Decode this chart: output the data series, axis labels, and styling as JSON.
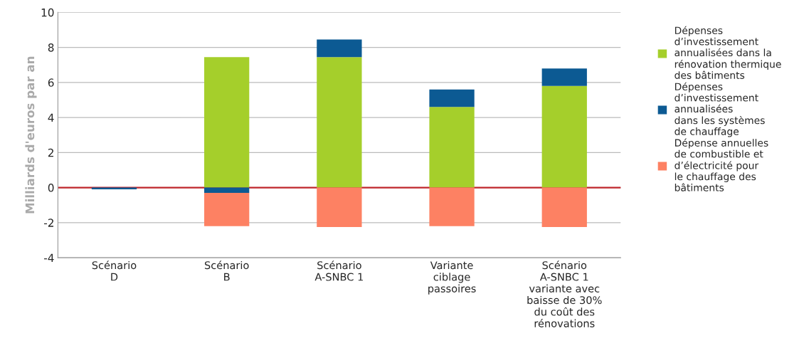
{
  "chart_data": {
    "type": "bar",
    "stacked": true,
    "ylabel": "Milliards d'euros par an",
    "categories": [
      "Scénario\nD",
      "Scénario\nB",
      "Scénario\nA-SNBC 1",
      "Variante\nciblage\npassoires",
      "Scénario\nA-SNBC 1\nvariante avec\nbaisse de 30%\ndu coût des\nrénovations"
    ],
    "series": [
      {
        "name": "Dépenses\nd’investissement\nannualisées dans la\nrénovation thermique\ndes bâtiments",
        "color": "#a5cf2b",
        "values": [
          null,
          7.45,
          7.45,
          4.6,
          5.8
        ]
      },
      {
        "name": "Dépenses\nd’investissement\nannualisées\ndans les systèmes\nde chauffage",
        "color": "#0c5a93",
        "values": [
          -0.1,
          -0.3,
          1.0,
          1.0,
          1.0
        ]
      },
      {
        "name": "Dépense annuelles\nde combustible et\nd’électricité pour\nle chauffage des\nbâtiments",
        "color": "#fd8163",
        "values": [
          null,
          -1.9,
          -2.25,
          -2.2,
          -2.25
        ]
      }
    ],
    "ylim": [
      -4,
      10
    ],
    "yticks": [
      -4,
      -2,
      0,
      2,
      4,
      6,
      8,
      10
    ],
    "ref_lines": [
      {
        "axis": "y",
        "value": 0,
        "color": "#c0272d"
      }
    ],
    "grid": "y",
    "legend": "right"
  }
}
